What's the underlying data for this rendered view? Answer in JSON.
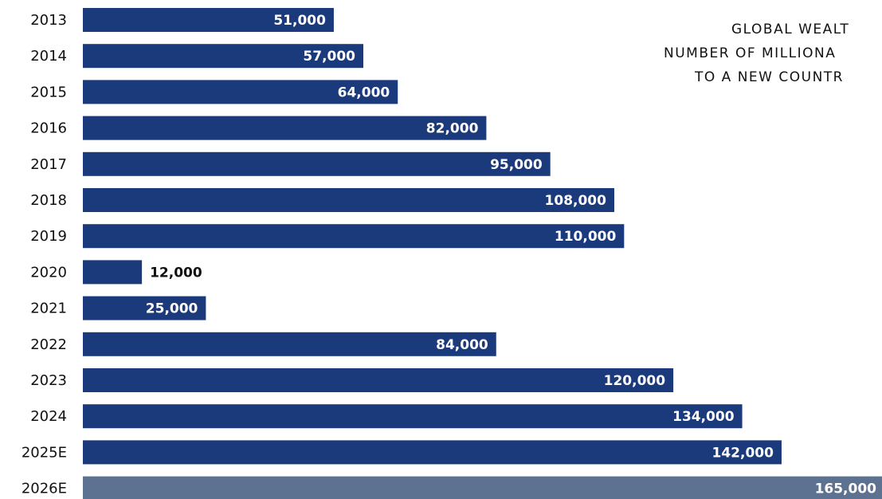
{
  "chart_data": {
    "type": "barh",
    "title_lines": [
      "GLOBAL WEALT",
      "NUMBER OF MILLIONA",
      "TO A NEW COUNTR"
    ],
    "categories": [
      "2013",
      "2014",
      "2015",
      "2016",
      "2017",
      "2018",
      "2019",
      "2020",
      "2021",
      "2022",
      "2023",
      "2024",
      "2025E",
      "2026E"
    ],
    "values": [
      51000,
      57000,
      64000,
      82000,
      95000,
      108000,
      110000,
      12000,
      25000,
      84000,
      120000,
      134000,
      142000,
      165000
    ],
    "value_labels": [
      "51,000",
      "57,000",
      "64,000",
      "82,000",
      "95,000",
      "108,000",
      "110,000",
      "12,000",
      "25,000",
      "84,000",
      "120,000",
      "134,000",
      "142,000",
      "165,000"
    ],
    "colors": [
      "#1b3a7c",
      "#1b3a7c",
      "#1b3a7c",
      "#1b3a7c",
      "#1b3a7c",
      "#1b3a7c",
      "#1b3a7c",
      "#1b3a7c",
      "#1b3a7c",
      "#1b3a7c",
      "#1b3a7c",
      "#1b3a7c",
      "#1b3a7c",
      "#5d7290"
    ]
  }
}
